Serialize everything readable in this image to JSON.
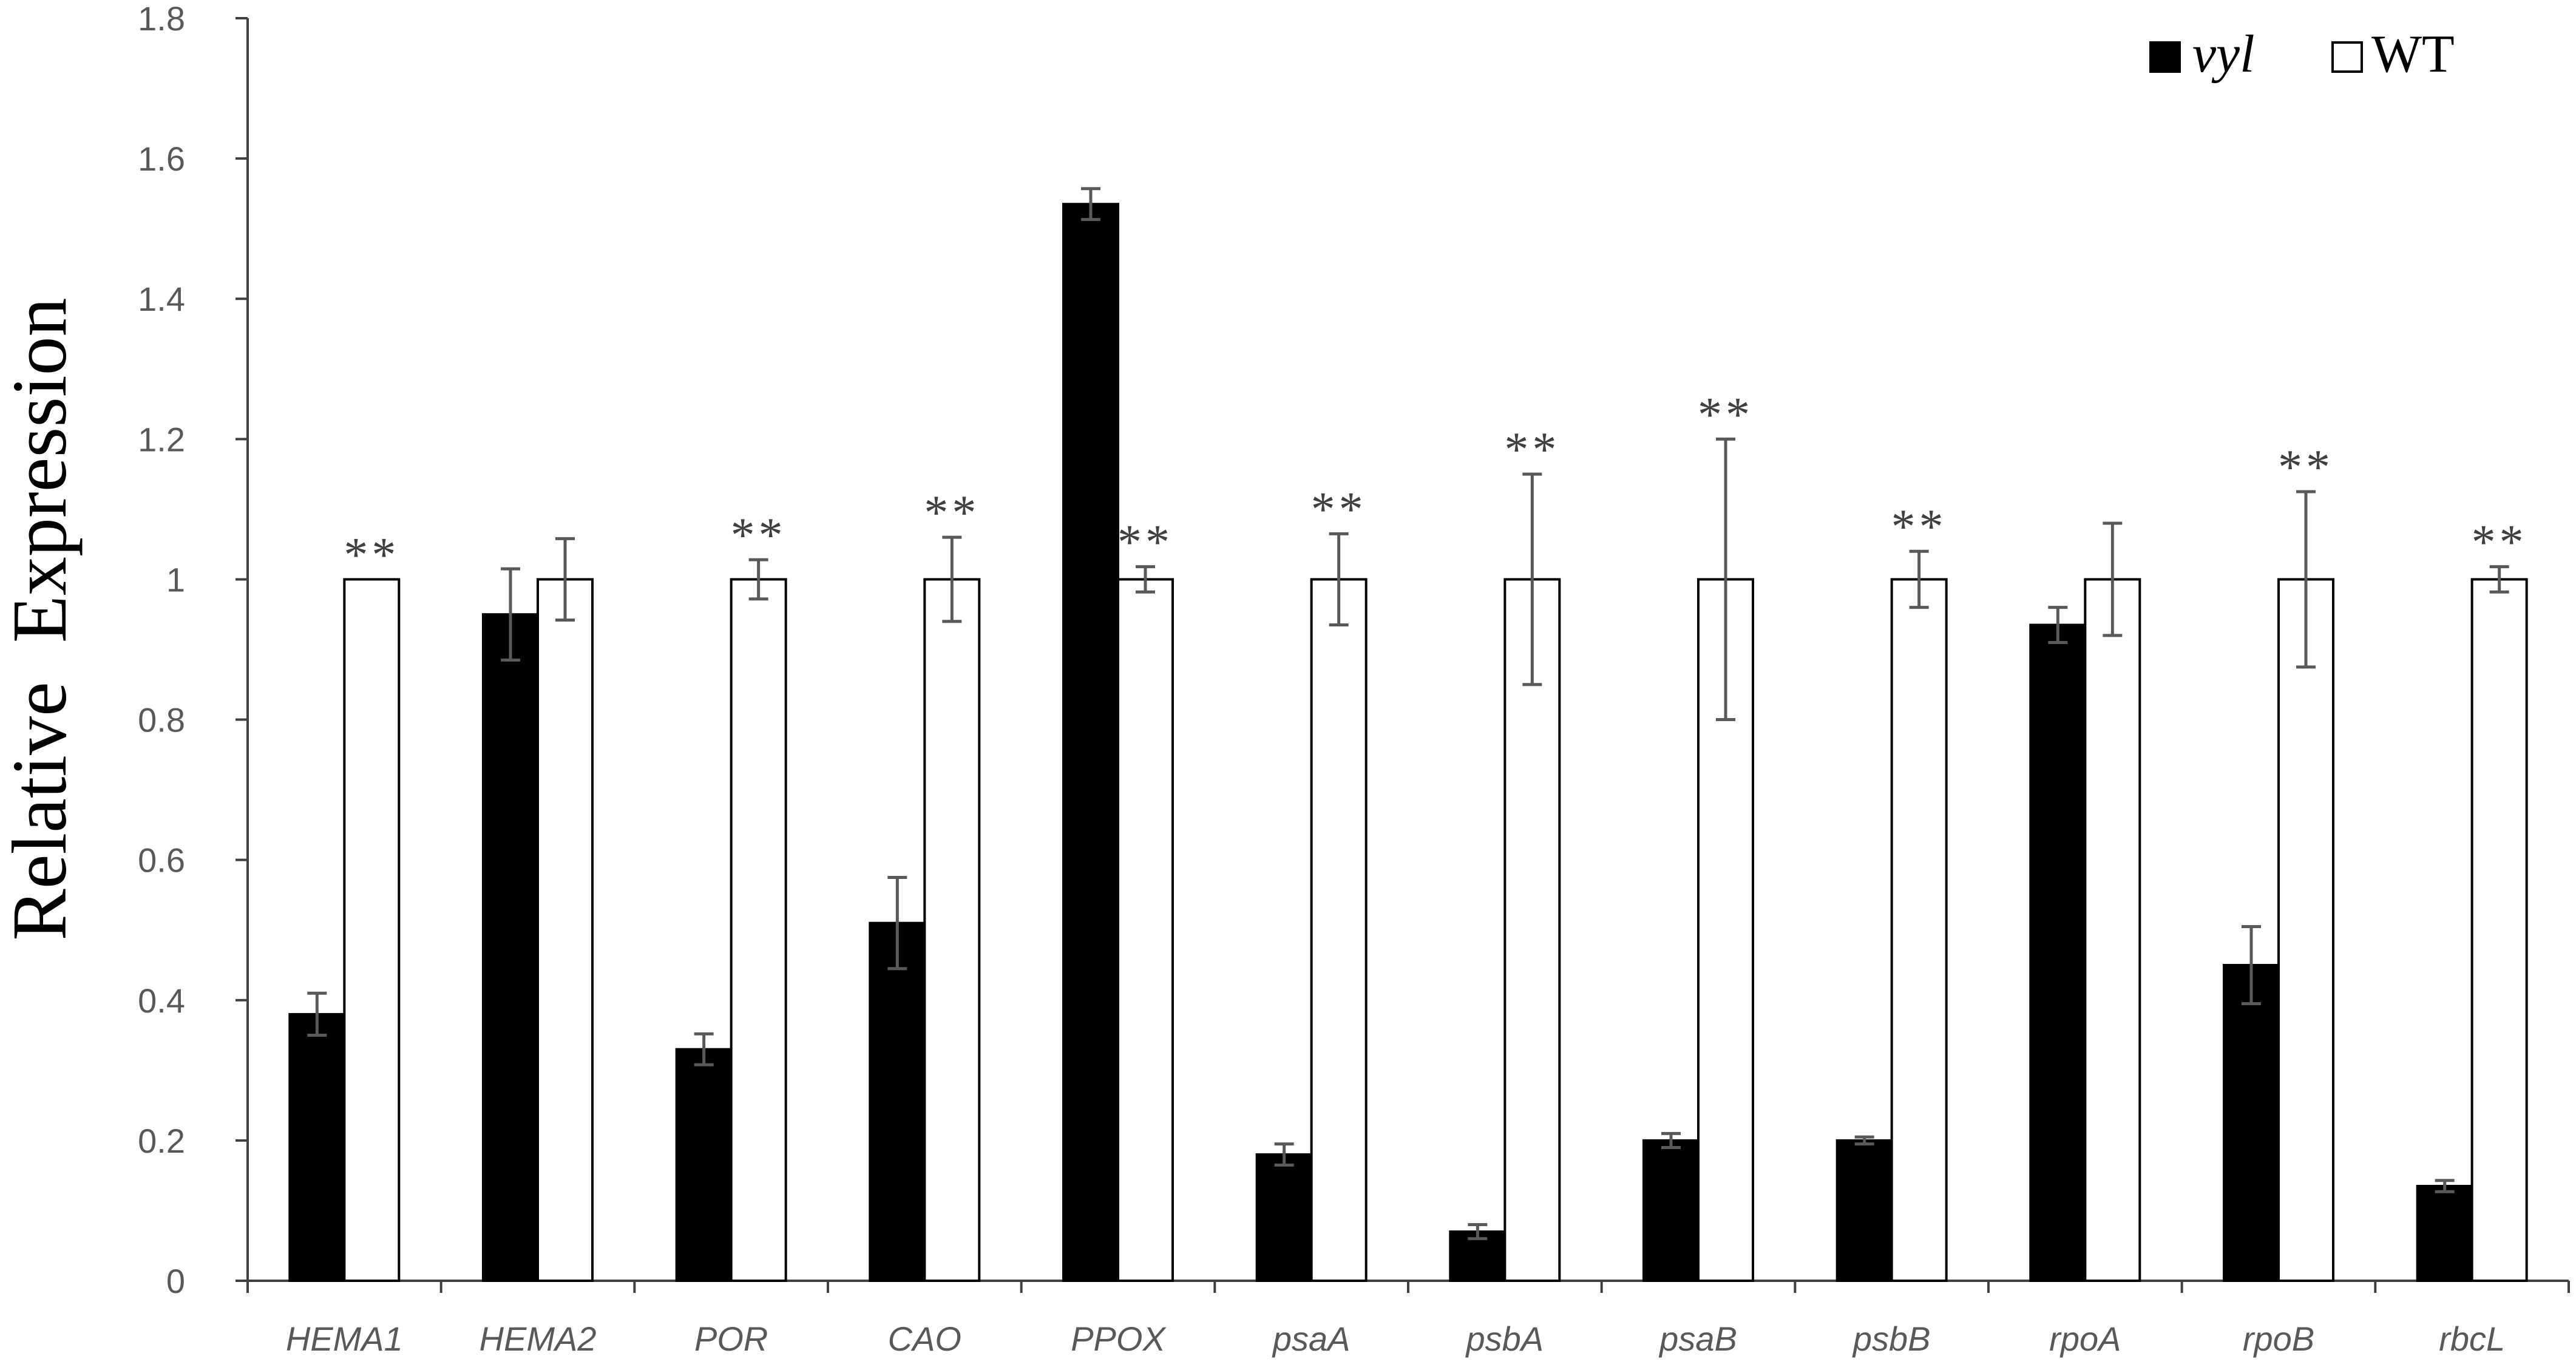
{
  "chart_data": {
    "type": "bar",
    "ylabel": "Relative  Expression",
    "xlabel": "",
    "ylim": [
      0,
      1.8
    ],
    "yticks": [
      "0",
      "0.2",
      "0.4",
      "0.6",
      "0.8",
      "1",
      "1.2",
      "1.4",
      "1.6",
      "1.8"
    ],
    "grid": false,
    "legend_position": "top-right",
    "categories": [
      "HEMA1",
      "HEMA2",
      "POR",
      "CAO",
      "PPOX",
      "psaA",
      "psbA",
      "psaB",
      "psbB",
      "rpoA",
      "rpoB",
      "rbcL"
    ],
    "series": [
      {
        "name": "vyl",
        "fill": "#000000",
        "values": [
          0.38,
          0.95,
          0.33,
          0.51,
          1.535,
          0.18,
          0.07,
          0.2,
          0.2,
          0.935,
          0.45,
          0.135
        ],
        "errors": [
          0.03,
          0.065,
          0.022,
          0.065,
          0.022,
          0.015,
          0.01,
          0.01,
          0.005,
          0.025,
          0.055,
          0.008
        ]
      },
      {
        "name": "WT",
        "fill": "#ffffff",
        "values": [
          1,
          1,
          1,
          1,
          1,
          1,
          1,
          1,
          1,
          1,
          1,
          1
        ],
        "errors": [
          0,
          0.058,
          0.028,
          0.06,
          0.018,
          0.065,
          0.15,
          0.2,
          0.04,
          0.08,
          0.125,
          0.018
        ]
      }
    ],
    "annotations": [
      "**",
      "",
      "**",
      "**",
      "**",
      "**",
      "**",
      "**",
      "**",
      "",
      "**",
      "**"
    ]
  }
}
